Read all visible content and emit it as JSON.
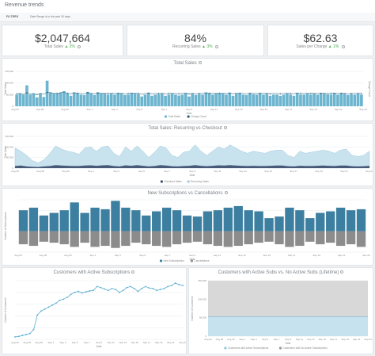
{
  "header": {
    "title": "Revenue trends",
    "filters_label": "FILTERS",
    "filters_text": "Date Range is in the past 30 days"
  },
  "kpis": [
    {
      "value": "$2,047,664",
      "label": "Total Sales",
      "delta": "2%"
    },
    {
      "value": "84%",
      "label": "Recurring Sales",
      "delta": "3%"
    },
    {
      "value": "$62.63",
      "label": "Sales per Charge",
      "delta": "1%"
    }
  ],
  "colors": {
    "bar": "#6db5cf",
    "line": "#2b5e7a",
    "area_light": "#c9e3ee",
    "area_dark": "#3b4a6b",
    "neg": "#8c8c8c",
    "pos": "#3d7fa0",
    "green": "#4caf50"
  },
  "date_labels": [
    "Aug 26",
    "Aug 28",
    "Aug 30",
    "Sep 1",
    "Sep 3",
    "Sep 5",
    "Sep 7",
    "Sep 9",
    "Sep 11",
    "Sep 13",
    "Sep 15",
    "Sep 17",
    "Sep 19",
    "Sep 21",
    "Sep 23"
  ],
  "charts": [
    {
      "title": "Total Sales",
      "xlabel": "Date",
      "ylabel": "Total Sales",
      "y2label": "Charge Count",
      "yticks": [
        "150,000",
        "100,000",
        "50,000",
        "0"
      ],
      "legend": [
        "Total Sales",
        "Charge Count"
      ]
    },
    {
      "title": "Total Sales: Recurring vs Checkout",
      "xlabel": "Date",
      "ylabel": "Total Sales",
      "yticks": [
        "150,000",
        "100,000",
        "50,000",
        "0"
      ],
      "legend": [
        "Checkout Sales",
        "Recurring Sales"
      ]
    },
    {
      "title": "New Subscriptions vs Cancellations",
      "xlabel": "Date",
      "ylabel": "Number of Subscriptions",
      "yticks": [
        "",
        "",
        "",
        "",
        "",
        ""
      ],
      "legend": [
        "New Subscriptions",
        "Cancellations"
      ]
    },
    {
      "title": "Customers with Active Subscriptions",
      "xlabel": "Date",
      "ylabel": "Number of Customers",
      "yticks": [
        "",
        "",
        "",
        "",
        "",
        ""
      ],
      "xticks": [
        "Aug 26",
        "Aug 28",
        "Aug 30",
        "Sep 1",
        "Sep 3",
        "Sep 5",
        "Sep 7",
        "Sep 9",
        "Sep 11",
        "Sep 13",
        "Sep 15",
        "Sep 17",
        "Sep 19",
        "Sep 21",
        "Sep 23"
      ]
    },
    {
      "title": "Customers with Active Subs vs. No Active Subs (Lifetime)",
      "xlabel": "Date",
      "ylabel": "Number of Customers",
      "yticks": [
        "150,000",
        "100,000",
        "50,000",
        "0"
      ],
      "legend": [
        "Customers with Active Subscriptions",
        "Customers with No Active Subscriptions"
      ]
    }
  ],
  "chart_data": [
    {
      "type": "bar",
      "title": "Total Sales",
      "ylim": [
        0,
        150000
      ],
      "values": [
        50,
        55,
        50,
        90,
        50,
        55,
        38,
        55,
        40,
        110,
        60,
        55,
        55,
        60,
        65,
        55,
        45,
        60,
        55,
        50,
        48,
        62,
        55,
        48,
        60,
        55,
        55,
        50,
        55,
        50,
        55,
        55,
        48,
        50,
        58,
        55,
        52,
        42,
        50,
        58,
        45,
        50,
        52,
        55,
        45,
        50,
        55,
        50,
        46,
        50,
        58,
        42,
        55,
        48,
        52,
        50,
        60,
        55,
        50,
        55,
        55,
        55,
        50,
        58,
        45,
        55,
        55,
        50,
        48,
        55,
        52,
        50,
        55,
        50,
        55,
        45,
        50,
        50,
        45,
        50,
        55,
        50,
        45,
        58,
        50,
        50,
        55,
        50,
        55,
        50,
        55,
        55,
        52,
        50,
        58,
        50,
        55,
        55,
        48,
        52,
        50,
        55,
        50
      ],
      "line": [
        54,
        55,
        52,
        58,
        53,
        55,
        50,
        56,
        52,
        60,
        58,
        56,
        55,
        58,
        60,
        56,
        54,
        58,
        56,
        55,
        54,
        58,
        56,
        54,
        57,
        56,
        56,
        55,
        56,
        55,
        56,
        56,
        54,
        55,
        57,
        56,
        55,
        53,
        55,
        57,
        54,
        55,
        55,
        56,
        54,
        55,
        56,
        55,
        54,
        55,
        57,
        53,
        56,
        54,
        55,
        55,
        57,
        56,
        55,
        56,
        56,
        56,
        55,
        57,
        54,
        56,
        56,
        55,
        54,
        56,
        55,
        55,
        56,
        55,
        56,
        54,
        55,
        55,
        54,
        55,
        56,
        55,
        54,
        57,
        55,
        55,
        56,
        55,
        56,
        55,
        56,
        56,
        55,
        55,
        57,
        55,
        56,
        56,
        54,
        55,
        55,
        56,
        55
      ]
    },
    {
      "type": "area",
      "title": "Total Sales: Recurring vs Checkout",
      "ylim": [
        0,
        150000
      ],
      "series": [
        {
          "name": "Recurring Sales",
          "values": [
            95,
            80,
            60,
            35,
            25,
            40,
            70,
            105,
            90,
            80,
            75,
            65,
            95,
            100,
            80,
            100,
            105,
            70,
            55,
            100,
            80,
            105,
            80,
            50,
            75,
            105,
            95,
            60,
            50,
            75,
            80,
            110,
            80,
            60,
            80,
            100,
            90,
            110,
            95,
            80,
            70,
            80,
            75,
            70,
            80,
            85,
            85,
            60,
            50,
            80,
            70,
            75,
            80,
            85,
            80,
            70,
            85,
            90,
            60,
            55,
            60,
            80
          ]
        },
        {
          "name": "Checkout Sales",
          "values": [
            10,
            12,
            8,
            6,
            5,
            8,
            10,
            14,
            12,
            11,
            10,
            10,
            12,
            13,
            11,
            13,
            14,
            10,
            8,
            13,
            11,
            14,
            11,
            8,
            10,
            14,
            12,
            9,
            8,
            10,
            11,
            14,
            11,
            9,
            11,
            13,
            12,
            14,
            12,
            11,
            10,
            11,
            10,
            10,
            11,
            12,
            12,
            9,
            8,
            11,
            10,
            10,
            11,
            12,
            11,
            10,
            12,
            12,
            9,
            8,
            9,
            11
          ]
        }
      ]
    },
    {
      "type": "bar",
      "title": "New Subscriptions vs Cancellations",
      "series": [
        {
          "name": "New Subscriptions",
          "values": [
            40,
            45,
            30,
            35,
            40,
            55,
            35,
            45,
            42,
            58,
            45,
            40,
            30,
            38,
            45,
            40,
            30,
            28,
            38,
            40,
            45,
            48,
            40,
            38,
            25,
            28,
            45,
            40,
            25,
            35,
            38,
            45,
            40,
            42
          ]
        },
        {
          "name": "Cancellations",
          "values": [
            -25,
            -28,
            -20,
            -22,
            -25,
            -30,
            -22,
            -30,
            -28,
            -32,
            -28,
            -22,
            -25,
            -28,
            -30,
            -25,
            -22,
            -20,
            -25,
            -28,
            -30,
            -28,
            -25,
            -22,
            -20,
            -25,
            -30,
            -28,
            -20,
            -25,
            -22,
            -28,
            -25,
            -30
          ]
        }
      ]
    },
    {
      "type": "line",
      "title": "Customers with Active Subscriptions",
      "values": [
        5,
        6,
        8,
        10,
        12,
        20,
        50,
        58,
        62,
        66,
        70,
        74,
        80,
        82,
        86,
        92,
        96,
        98,
        95,
        97,
        99,
        100,
        108,
        106,
        103,
        100,
        104,
        102,
        96,
        100,
        106,
        108,
        104,
        98,
        104,
        108,
        105,
        104,
        100,
        102,
        104,
        108,
        110,
        115,
        112,
        110
      ]
    },
    {
      "type": "area",
      "title": "Customers with Active Subs vs. No Active Subs (Lifetime)",
      "ylim": [
        0,
        150000
      ],
      "series": [
        {
          "name": "Customers with No Active Subscriptions",
          "values": [
            150000,
            150000,
            150000,
            150000,
            150000,
            150000,
            150000,
            150000,
            150000,
            150000,
            150000,
            150000,
            150000,
            150000,
            150000
          ]
        },
        {
          "name": "Customers with Active Subscriptions",
          "values": [
            52000,
            52000,
            52000,
            52000,
            52000,
            52000,
            52000,
            52000,
            52000,
            52000,
            52000,
            52000,
            52000,
            52000,
            52000
          ]
        }
      ]
    }
  ]
}
